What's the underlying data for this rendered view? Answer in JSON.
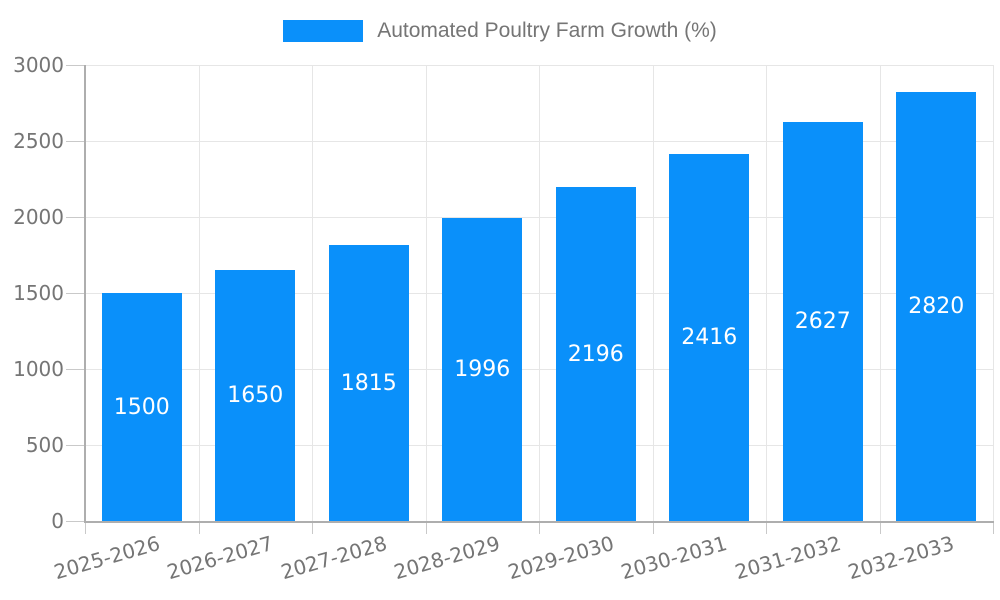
{
  "chart_data": {
    "type": "bar",
    "title": "Automated Poultry Farm Growth (%)",
    "categories": [
      "2025-2026",
      "2026-2027",
      "2027-2028",
      "2028-2029",
      "2029-2030",
      "2030-2031",
      "2031-2032",
      "2032-2033"
    ],
    "values": [
      1500,
      1650,
      1815,
      1996,
      2196,
      2416,
      2627,
      2820
    ],
    "data_labels": [
      "1500",
      "1650",
      "1815",
      "1996",
      "2196",
      "2416",
      "2627",
      "2820"
    ],
    "xlabel": "",
    "ylabel": "",
    "ylim": [
      0,
      3000
    ],
    "yticks": [
      0,
      500,
      1000,
      1500,
      2000,
      2500,
      3000
    ],
    "grid": true,
    "legend_position": "top",
    "colors": {
      "bar": "#0a90fa",
      "bar_label": "#ffffff",
      "axis_text": "#757575",
      "axis_line": "#aeaeae",
      "tick_line": "#c9c9c9",
      "gridline": "#e6e6e6",
      "background": "#ffffff"
    }
  }
}
